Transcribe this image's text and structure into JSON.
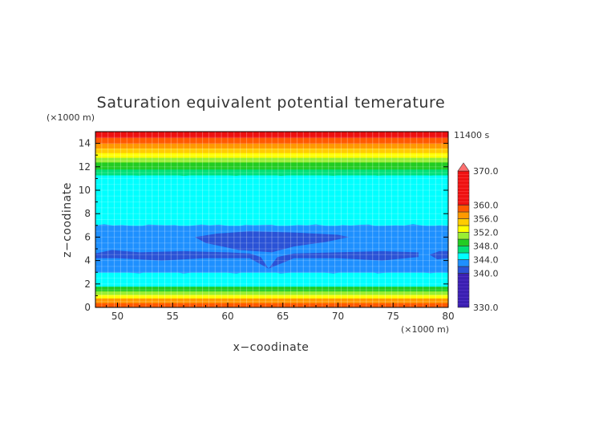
{
  "chart_data": {
    "type": "heatmap",
    "title": "Saturation equivalent potential temerature",
    "xlabel": "x−coodinate",
    "ylabel": "z−coodinate",
    "x_unit": "(×1000 m)",
    "y_unit": "(×1000 m)",
    "time_label": "11400 s",
    "xlim": [
      48,
      80
    ],
    "ylim": [
      0,
      15
    ],
    "x_ticks": [
      "50",
      "55",
      "60",
      "65",
      "70",
      "75",
      "80"
    ],
    "y_ticks": [
      "0",
      "2",
      "4",
      "6",
      "8",
      "10",
      "12",
      "14"
    ],
    "grid": true,
    "colorbar": {
      "labels": [
        "370.0",
        "360.0",
        "356.0",
        "352.0",
        "348.0",
        "344.0",
        "340.0",
        "330.0"
      ],
      "bands": [
        {
          "range": "330-340",
          "color": "#3a1fb0"
        },
        {
          "range": "340-342",
          "color": "#2a52d6"
        },
        {
          "range": "342-344",
          "color": "#1e90ff"
        },
        {
          "range": "344-346",
          "color": "#00ffff"
        },
        {
          "range": "346-348",
          "color": "#00e078"
        },
        {
          "range": "348-350",
          "color": "#22cc22"
        },
        {
          "range": "350-352",
          "color": "#99ee33"
        },
        {
          "range": "352-354",
          "color": "#ffff00"
        },
        {
          "range": "354-356",
          "color": "#ffcc00"
        },
        {
          "range": "356-358",
          "color": "#ff9900"
        },
        {
          "range": "358-360",
          "color": "#ff5a00"
        },
        {
          "range": "360-370",
          "color": "#ee1111"
        },
        {
          "range": ">370",
          "color": "#ff6f6f"
        }
      ]
    },
    "layers_z": [
      {
        "from": 0,
        "to": 0.4,
        "color": "#ff5a00"
      },
      {
        "from": 0.4,
        "to": 0.8,
        "color": "#ff9900"
      },
      {
        "from": 0.8,
        "to": 1.1,
        "color": "#ffff00"
      },
      {
        "from": 1.1,
        "to": 1.4,
        "color": "#99ee33"
      },
      {
        "from": 1.4,
        "to": 1.8,
        "color": "#22cc22"
      },
      {
        "from": 1.8,
        "to": 3.0,
        "color": "#00ffff"
      },
      {
        "from": 3.0,
        "to": 7.0,
        "color": "#1e90ff"
      },
      {
        "from": 7.0,
        "to": 11.3,
        "color": "#00ffff"
      },
      {
        "from": 11.3,
        "to": 11.8,
        "color": "#00e078"
      },
      {
        "from": 11.8,
        "to": 12.4,
        "color": "#22cc22"
      },
      {
        "from": 12.4,
        "to": 12.8,
        "color": "#99ee33"
      },
      {
        "from": 12.8,
        "to": 13.2,
        "color": "#ffff00"
      },
      {
        "from": 13.2,
        "to": 13.6,
        "color": "#ffcc00"
      },
      {
        "from": 13.6,
        "to": 14.0,
        "color": "#ff9900"
      },
      {
        "from": 14.0,
        "to": 14.5,
        "color": "#ff5a00"
      },
      {
        "from": 14.5,
        "to": 15.0,
        "color": "#ee1111"
      }
    ],
    "regions": [
      {
        "name": "low-theta-band",
        "color": "#2a52d6",
        "points": [
          [
            48,
            4.6
          ],
          [
            49.5,
            4.9
          ],
          [
            52,
            4.7
          ],
          [
            56,
            4.8
          ],
          [
            60,
            4.7
          ],
          [
            62,
            4.6
          ],
          [
            63,
            4.3
          ],
          [
            63.7,
            3.3
          ],
          [
            64.5,
            4.3
          ],
          [
            66,
            4.6
          ],
          [
            70,
            4.7
          ],
          [
            74,
            4.8
          ],
          [
            77.3,
            4.7
          ],
          [
            77.3,
            4.3
          ],
          [
            74,
            4.0
          ],
          [
            70,
            4.2
          ],
          [
            66,
            4.2
          ],
          [
            63.7,
            3.3
          ],
          [
            62,
            4.2
          ],
          [
            58,
            4.2
          ],
          [
            54,
            4.0
          ],
          [
            50,
            4.2
          ],
          [
            49.5,
            4.2
          ],
          [
            48,
            4.2
          ]
        ]
      },
      {
        "name": "low-theta-core",
        "color": "#2a52d6",
        "points": [
          [
            57,
            6.0
          ],
          [
            59,
            6.3
          ],
          [
            62,
            6.5
          ],
          [
            66,
            6.4
          ],
          [
            70,
            6.2
          ],
          [
            71,
            6.0
          ],
          [
            69,
            5.6
          ],
          [
            66,
            5.2
          ],
          [
            64,
            4.7
          ],
          [
            61,
            4.9
          ],
          [
            58,
            5.5
          ]
        ]
      },
      {
        "name": "low-theta-right-tip",
        "color": "#2a52d6",
        "points": [
          [
            78.3,
            4.5
          ],
          [
            79.2,
            4.8
          ],
          [
            80,
            4.8
          ],
          [
            80,
            4.2
          ],
          [
            79,
            4.1
          ]
        ]
      }
    ]
  }
}
